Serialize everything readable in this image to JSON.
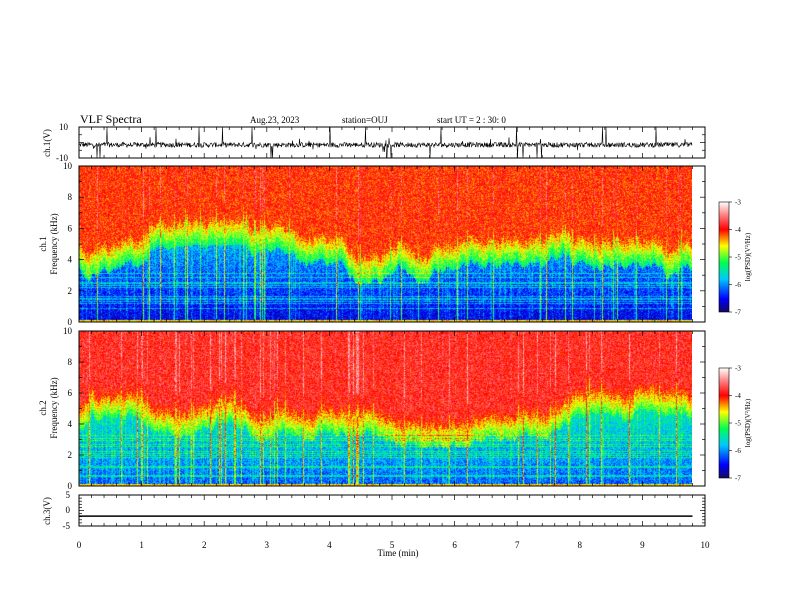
{
  "header": {
    "title": "VLF Spectra",
    "date": "Aug.23, 2023",
    "station": "station=OUJ",
    "start": "start UT =  2 : 30: 0"
  },
  "colors": {
    "background": "#ffffff",
    "axis": "#000000",
    "waveform": "#000000",
    "spectrogram_scale": [
      "#1a0a70",
      "#0000ff",
      "#00c8ff",
      "#00ff50",
      "#ffff00",
      "#ff0000",
      "#ff8080",
      "#ffffff"
    ]
  },
  "chart_data": [
    {
      "type": "line",
      "panel": "ch1-waveform",
      "ylabel": "ch.1(V)",
      "ylim": [
        -10,
        10
      ],
      "ytick_labels": [
        "10",
        "-10"
      ],
      "xlim": [
        0,
        10
      ],
      "signal": "noisy waveform around -1.5 V with frequent impulsive spikes up to +10 V and down to -10 V",
      "baseline": -1.5
    },
    {
      "type": "heatmap",
      "panel": "ch1-spectrogram",
      "ylabel_line1": "ch.1",
      "ylabel_line2": "Frequency (kHz)",
      "ylim": [
        0,
        10
      ],
      "ytick_labels": [
        "0",
        "2",
        "4",
        "6",
        "8",
        "10"
      ],
      "xlim": [
        0,
        10
      ],
      "description": "blue/green band below about 4 kHz, yellow-green transition 4-6 kHz, red above 6 kHz, many vertical broadband sferic streaks",
      "colorbar": {
        "label": "log(PSD)(V²/Hz)",
        "range": [
          -7,
          -3
        ],
        "tick_labels": [
          "-3",
          "-4",
          "-5",
          "-6",
          "-7"
        ]
      }
    },
    {
      "type": "heatmap",
      "panel": "ch2-spectrogram",
      "ylabel_line1": "ch.2",
      "ylabel_line2": "Frequency (kHz)",
      "ylim": [
        0,
        10
      ],
      "ytick_labels": [
        "0",
        "2",
        "4",
        "6",
        "8",
        "10"
      ],
      "xlim": [
        0,
        10
      ],
      "description": "green/cyan band below about 4 kHz, yellow-green 4-6 kHz, red above 6 kHz, many vertical broadband sferic streaks",
      "colorbar": {
        "label": "log(PSD)(V²/Hz)",
        "range": [
          -7,
          -3
        ],
        "tick_labels": [
          "-3",
          "-4",
          "-5",
          "-6",
          "-7"
        ]
      }
    },
    {
      "type": "line",
      "panel": "ch3-waveform",
      "ylabel": "ch.3(V)",
      "ylim": [
        -5,
        5
      ],
      "ytick_labels": [
        "5",
        "0",
        "-5"
      ],
      "xlim": [
        0,
        10
      ],
      "baseline": -1.8
    }
  ],
  "xaxis": {
    "label": "Time (min)",
    "range": [
      0,
      10
    ],
    "data_end": 9.8,
    "tick_labels": [
      "0",
      "1",
      "2",
      "3",
      "4",
      "5",
      "6",
      "7",
      "8",
      "9",
      "10"
    ]
  }
}
